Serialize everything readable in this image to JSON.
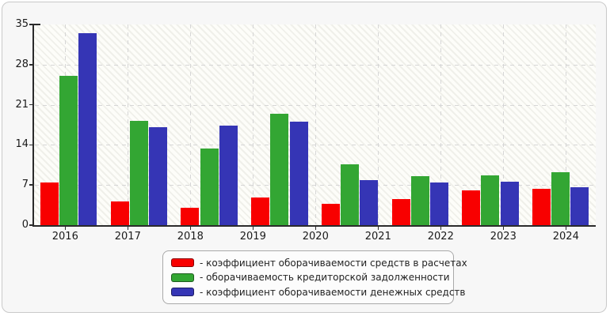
{
  "chart_data": {
    "type": "bar",
    "title": "",
    "x_tick_labels": [
      "2016",
      "2017",
      "2018",
      "2019",
      "2020",
      "2021",
      "2022",
      "2023",
      "2024"
    ],
    "y_tick_labels": [
      "0",
      "7",
      "14",
      "21",
      "28",
      "35"
    ],
    "yticks": [
      0,
      7,
      14,
      21,
      28,
      35
    ],
    "ylim": [
      0,
      35
    ],
    "grid": {
      "horizontal": "dashed",
      "vertical": "dashed"
    },
    "plot_background": "white with light diagonal hatch",
    "bar_group_count": 8,
    "layout_note": "8 bar groups are spread across an axis carrying 9 year tick labels; groups drift rightward relative to the ticks from left to right",
    "series": [
      {
        "name": "коэффициент оборачиваемости средств в расчетах",
        "color": "#f80000",
        "values": [
          7.4,
          4.1,
          3.0,
          4.8,
          3.7,
          4.6,
          6.0,
          6.3
        ]
      },
      {
        "name": "оборачиваемость кредиторской задолженности",
        "color": "#33a633",
        "values": [
          26.0,
          18.2,
          13.3,
          19.4,
          10.6,
          8.6,
          8.7,
          9.2
        ]
      },
      {
        "name": "коэффициент оборачиваемости денежных средств",
        "color": "#3535b5",
        "values": [
          33.5,
          17.1,
          17.4,
          18.0,
          7.9,
          7.5,
          7.6,
          6.6
        ]
      }
    ],
    "legend": {
      "position": "bottom-center",
      "items": [
        {
          "swatch_color": "#f80000",
          "label": "- коэффициент оборачиваемости средств в расчетах"
        },
        {
          "swatch_color": "#33a633",
          "label": "- оборачиваемость кредиторской задолженности"
        },
        {
          "swatch_color": "#3535b5",
          "label": "- коэффициент оборачиваемости денежных средств"
        }
      ]
    }
  },
  "colors": {
    "card_background": "#f7f7f7",
    "card_border": "#c9c9c9",
    "axis": "#2b2b2b",
    "gridline": "#d6d6d6",
    "tick_text": "#1a1a1a",
    "legend_background": "#fcfcfc",
    "legend_border": "#a9a9a9",
    "legend_text": "#222222"
  }
}
